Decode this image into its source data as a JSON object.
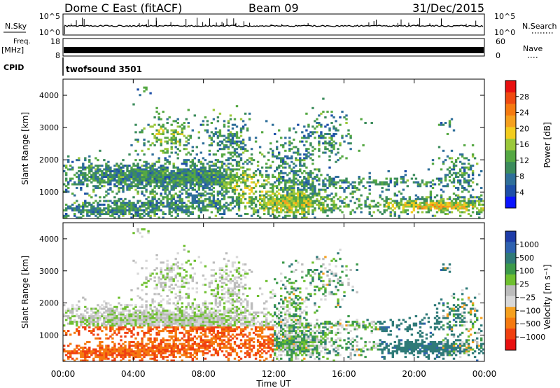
{
  "header": {
    "station": "Dome C East (fitACF)",
    "beam": "Beam 09",
    "date": "31/Dec/2015"
  },
  "summary_panels": {
    "nsky_label": "N.Sky",
    "nsky_ticks": [
      "10^5",
      "10^0"
    ],
    "nsearch_label": "N.Search",
    "nsearch_ticks": [
      "10^5",
      "10^0"
    ],
    "freq_label": "Freq.",
    "freq_unit": "[MHz]",
    "freq_ticks": [
      "18",
      "8"
    ],
    "nave_label": "Nave",
    "nave_ticks": [
      "60",
      "0"
    ],
    "cpid_label": "CPID",
    "cpid_value": "twofsound 3501"
  },
  "chart_data": [
    {
      "type": "heatmap",
      "name_shown": "",
      "ylabel": "Slant Range [km]",
      "ylim": [
        180,
        4500
      ],
      "yticks": [
        1000,
        2000,
        3000,
        4000
      ],
      "xlabel": "Time UT",
      "xticks": [
        "00:00",
        "04:00",
        "08:00",
        "12:00",
        "16:00",
        "20:00",
        "00:00"
      ],
      "colorbar": {
        "label": "Power [dB]",
        "ticks": [
          "4",
          "8",
          "12",
          "16",
          "20",
          "24",
          "28"
        ],
        "colors": [
          "#0a14ff",
          "#1e4fa8",
          "#2f6f9a",
          "#3c8c5c",
          "#55a843",
          "#9bc83a",
          "#f2cc1e",
          "#f5a01e",
          "#f57a10",
          "#ef4a10",
          "#e81010"
        ],
        "range": [
          0,
          32
        ]
      }
    },
    {
      "type": "heatmap",
      "ylabel": "Slant Range [km]",
      "ylim": [
        180,
        4500
      ],
      "yticks": [
        1000,
        2000,
        3000,
        4000
      ],
      "xlabel": "Time UT",
      "xticks": [
        "00:00",
        "04:00",
        "08:00",
        "12:00",
        "16:00",
        "20:00",
        "00:00"
      ],
      "colorbar": {
        "label": "Velocity [m s⁻¹]",
        "ticks": [
          "1000",
          "500",
          "100",
          "25",
          "−25",
          "−100",
          "−500",
          "−1000"
        ],
        "colors": [
          "#1e3ca8",
          "#2f62b0",
          "#2f7a78",
          "#3c9a4a",
          "#6fc030",
          "#bcbcbc",
          "#d8d8d8",
          "#f5a01e",
          "#f57a10",
          "#f04010",
          "#e81010"
        ],
        "range": [
          -1000,
          1000
        ]
      }
    }
  ],
  "colors": {
    "frame": "#000000",
    "background": "#ffffff"
  }
}
